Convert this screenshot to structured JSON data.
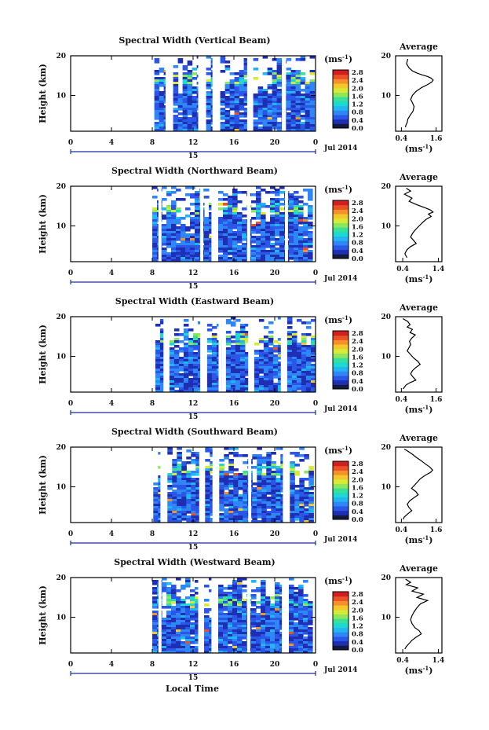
{
  "figure": {
    "xlabel": "Local Time",
    "date_label": "Jul 2014",
    "day_label": "15",
    "ylabel": "Height (km)",
    "unit_label": "(ms",
    "unit_sup": "-1",
    "avg_title": "Average",
    "colormap": [
      "#141a3c",
      "#1e2fb4",
      "#2a57e8",
      "#2f86f6",
      "#22b6f0",
      "#1ed8d2",
      "#38e09a",
      "#8ee65c",
      "#d8ea38",
      "#f4c82a",
      "#f6902a",
      "#ec5026",
      "#d01f1e"
    ]
  },
  "chart_data": [
    {
      "type": "heatmap",
      "title": "Spectral Width (Vertical Beam)",
      "xticks": [
        "0",
        "4",
        "8",
        "12",
        "16",
        "20",
        "0"
      ],
      "xlim": [
        0,
        24
      ],
      "yticks": [
        "20",
        "10"
      ],
      "ylim": [
        1,
        20
      ],
      "colorbar_ticks": [
        "2.8",
        "2.4",
        "2.0",
        "1.6",
        "1.2",
        "0.8",
        "0.4",
        "0.0"
      ],
      "data_start_hour": 8.2,
      "data_gaps_hours": [
        [
          9.3,
          9.8
        ],
        [
          12.5,
          12.9
        ],
        [
          13.9,
          14.4
        ],
        [
          17.3,
          17.8
        ],
        [
          20.7,
          21.1
        ]
      ],
      "average_profile": {
        "xticks": [
          "0.4",
          "1.6"
        ],
        "xlim": [
          0.2,
          1.8
        ],
        "x": [
          0.62,
          0.58,
          0.66,
          0.78,
          0.95,
          1.12,
          1.3,
          1.42,
          1.5,
          1.45,
          1.32,
          1.1,
          0.9,
          0.78,
          0.72,
          0.78,
          0.84,
          0.8,
          0.7,
          0.62,
          0.6,
          0.56,
          0.54
        ],
        "y": [
          19.2,
          18.0,
          17.0,
          16.2,
          15.6,
          15.2,
          14.8,
          14.4,
          13.9,
          13.4,
          12.8,
          12.0,
          11.0,
          10.0,
          9.0,
          8.2,
          7.2,
          6.0,
          5.0,
          4.0,
          3.2,
          2.6,
          2.0
        ]
      }
    },
    {
      "type": "heatmap",
      "title": "Spectral Width (Northward Beam)",
      "xticks": [
        "0",
        "4",
        "8",
        "12",
        "16",
        "20",
        "0"
      ],
      "xlim": [
        0,
        24
      ],
      "yticks": [
        "20",
        "10"
      ],
      "ylim": [
        1,
        20
      ],
      "colorbar_ticks": [
        "2.8",
        "2.4",
        "2.0",
        "1.6",
        "1.2",
        "0.8",
        "0.4",
        "0.0"
      ],
      "data_start_hour": 8.0,
      "data_gaps_hours": [
        [
          8.6,
          8.9
        ],
        [
          12.7,
          13.0
        ],
        [
          13.8,
          14.2
        ],
        [
          17.3,
          17.6
        ],
        [
          21.0,
          21.3
        ]
      ],
      "average_profile": {
        "xticks": [
          "0.4",
          "1.4"
        ],
        "xlim": [
          0.2,
          1.5
        ],
        "x": [
          0.5,
          0.62,
          0.45,
          0.66,
          0.58,
          0.75,
          0.9,
          1.05,
          1.18,
          1.25,
          1.12,
          1.2,
          1.05,
          0.95,
          0.86,
          0.75,
          0.68,
          0.62,
          0.7,
          0.78,
          0.62,
          0.52,
          0.46,
          0.52
        ],
        "y": [
          19.5,
          18.8,
          18.0,
          17.0,
          16.2,
          15.5,
          15.0,
          14.5,
          14.0,
          13.5,
          13.0,
          12.4,
          11.6,
          10.8,
          10.0,
          9.0,
          8.2,
          7.2,
          6.4,
          5.6,
          4.8,
          4.0,
          3.0,
          2.0
        ]
      }
    },
    {
      "type": "heatmap",
      "title": "Spectral Width (Eastward Beam)",
      "xticks": [
        "0",
        "4",
        "8",
        "12",
        "16",
        "20",
        "0"
      ],
      "xlim": [
        0,
        24
      ],
      "yticks": [
        "20",
        "10"
      ],
      "ylim": [
        1,
        20
      ],
      "colorbar_ticks": [
        "2.8",
        "2.4",
        "2.0",
        "1.6",
        "1.2",
        "0.8",
        "0.4",
        "0.0"
      ],
      "data_start_hour": 8.3,
      "data_gaps_hours": [
        [
          9.1,
          9.4
        ],
        [
          12.7,
          13.0
        ],
        [
          14.5,
          14.8
        ],
        [
          17.4,
          17.7
        ],
        [
          20.6,
          20.9
        ]
      ],
      "average_profile": {
        "xticks": [
          "0.4",
          "1.6"
        ],
        "xlim": [
          0.2,
          1.8
        ],
        "x": [
          0.45,
          0.62,
          0.7,
          0.6,
          0.78,
          0.7,
          0.88,
          0.76,
          0.68,
          0.72,
          0.66,
          0.6,
          0.7,
          0.82,
          0.96,
          1.05,
          0.9,
          0.78,
          0.72,
          0.8,
          0.9,
          0.7,
          0.56,
          0.5,
          0.46
        ],
        "y": [
          19.5,
          18.8,
          18.0,
          17.4,
          16.8,
          16.0,
          15.4,
          14.6,
          13.8,
          13.0,
          12.2,
          11.4,
          10.6,
          9.6,
          8.8,
          8.0,
          7.2,
          6.4,
          5.6,
          4.8,
          4.0,
          3.4,
          2.8,
          2.2,
          1.8
        ]
      }
    },
    {
      "type": "heatmap",
      "title": "Spectral Width (Southward Beam)",
      "xticks": [
        "0",
        "4",
        "8",
        "12",
        "16",
        "20",
        "0"
      ],
      "xlim": [
        0,
        24
      ],
      "yticks": [
        "20",
        "10"
      ],
      "ylim": [
        1,
        20
      ],
      "colorbar_ticks": [
        "2.8",
        "2.4",
        "2.0",
        "1.6",
        "1.2",
        "0.8",
        "0.4",
        "0.0"
      ],
      "data_start_hour": 8.1,
      "data_gaps_hours": [
        [
          8.8,
          9.1
        ],
        [
          12.6,
          12.9
        ],
        [
          13.9,
          14.2
        ],
        [
          17.4,
          17.7
        ],
        [
          20.8,
          21.1
        ]
      ],
      "average_profile": {
        "xticks": [
          "0.4",
          "1.6"
        ],
        "xlim": [
          0.2,
          1.8
        ],
        "x": [
          0.5,
          0.62,
          0.78,
          0.92,
          1.08,
          1.22,
          1.38,
          1.48,
          1.4,
          1.2,
          1.05,
          0.95,
          0.85,
          0.75,
          0.9,
          0.98,
          0.82,
          0.68,
          0.6,
          0.66,
          0.76,
          0.62,
          0.5,
          0.46
        ],
        "y": [
          19.5,
          19.0,
          18.2,
          17.4,
          16.6,
          15.8,
          15.0,
          14.2,
          13.6,
          12.8,
          12.0,
          11.2,
          10.4,
          9.6,
          8.8,
          8.0,
          7.2,
          6.4,
          5.6,
          4.8,
          4.0,
          3.2,
          2.4,
          1.8
        ]
      }
    },
    {
      "type": "heatmap",
      "title": "Spectral Width (Westward Beam)",
      "xticks": [
        "0",
        "4",
        "8",
        "12",
        "16",
        "20",
        "0"
      ],
      "xlim": [
        0,
        24
      ],
      "yticks": [
        "20",
        "10"
      ],
      "ylim": [
        1,
        20
      ],
      "colorbar_ticks": [
        "2.8",
        "2.4",
        "2.0",
        "1.6",
        "1.2",
        "0.8",
        "0.4",
        "0.0"
      ],
      "data_start_hour": 8.0,
      "data_gaps_hours": [
        [
          8.6,
          8.9
        ],
        [
          12.5,
          12.8
        ],
        [
          13.8,
          14.1
        ],
        [
          17.3,
          17.6
        ],
        [
          20.7,
          21.0
        ]
      ],
      "average_profile": {
        "xticks": [
          "0.4",
          "1.4"
        ],
        "xlim": [
          0.2,
          1.5
        ],
        "x": [
          0.48,
          0.62,
          0.5,
          0.82,
          0.66,
          0.98,
          0.8,
          1.1,
          0.9,
          0.8,
          0.72,
          0.66,
          0.62,
          0.66,
          0.74,
          0.86,
          0.92,
          0.78,
          0.66,
          0.58,
          0.5,
          0.46
        ],
        "y": [
          19.6,
          18.8,
          18.2,
          17.4,
          16.6,
          15.8,
          15.0,
          14.2,
          13.4,
          12.4,
          11.4,
          10.4,
          9.4,
          8.4,
          7.4,
          6.6,
          5.8,
          5.0,
          4.2,
          3.4,
          2.6,
          2.0
        ]
      }
    }
  ]
}
